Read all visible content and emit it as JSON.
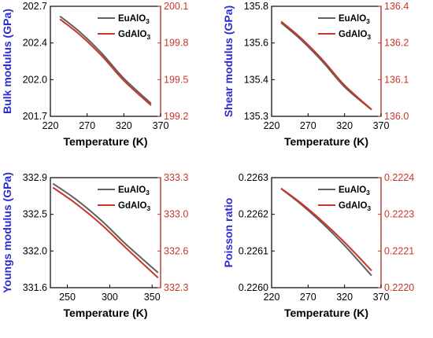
{
  "colors": {
    "left_axis": "#2b2bd3",
    "right_axis": "#c8362a",
    "tick_left": "#000000",
    "frame": "#000000"
  },
  "chart_data": [
    {
      "type": "line",
      "xlabel": "Temperature (K)",
      "ylabel": "Bulk modulus (GPa)",
      "xlim": [
        220,
        370
      ],
      "xticks": [
        "220",
        "270",
        "320",
        "370"
      ],
      "ylim": [
        201.7,
        202.7
      ],
      "yticks": [
        "201.7",
        "202.0",
        "202.4",
        "202.7"
      ],
      "ylim_right": [
        199.2,
        200.1
      ],
      "yticks_right": [
        "199.2",
        "199.5",
        "199.8",
        "200.1"
      ],
      "legend_position": "top-right",
      "series": [
        {
          "name": "EuAlO3",
          "color": "#606060",
          "axis": "left",
          "x": [
            233,
            260,
            290,
            320,
            357
          ],
          "y": [
            202.61,
            202.467,
            202.272,
            202.044,
            201.817
          ]
        },
        {
          "name": "GdAlO3",
          "color": "#c8362a",
          "axis": "right",
          "x": [
            233,
            260,
            290,
            320,
            357
          ],
          "y": [
            199.995,
            199.868,
            199.695,
            199.492,
            199.29
          ]
        }
      ]
    },
    {
      "type": "line",
      "xlabel": "Temperature (K)",
      "ylabel": "Shear modulus (GPa)",
      "xlim": [
        220,
        370
      ],
      "xticks": [
        "220",
        "270",
        "320",
        "370"
      ],
      "ylim": [
        135.3,
        135.8
      ],
      "yticks": [
        "135.3",
        "135.4",
        "135.6",
        "135.8"
      ],
      "ylim_right": [
        136.0,
        136.4
      ],
      "yticks_right": [
        "136.0",
        "136.1",
        "136.2",
        "136.4"
      ],
      "legend_position": "top-right",
      "series": [
        {
          "name": "EuAlO3",
          "color": "#606060",
          "axis": "left",
          "x": [
            233,
            260,
            290,
            320,
            357
          ],
          "y": [
            135.725,
            135.649,
            135.548,
            135.434,
            135.33
          ]
        },
        {
          "name": "GdAlO3",
          "color": "#c8362a",
          "axis": "right",
          "x": [
            233,
            260,
            290,
            320,
            357
          ],
          "y": [
            136.345,
            136.285,
            136.205,
            136.113,
            136.025
          ]
        }
      ]
    },
    {
      "type": "line",
      "xlabel": "Temperature (K)",
      "ylabel": "Youngs modulus (GPa)",
      "xlim": [
        230,
        360
      ],
      "xticks": [
        "250",
        "300",
        "350"
      ],
      "ylim": [
        331.6,
        332.9
      ],
      "yticks": [
        "331.6",
        "332.0",
        "332.5",
        "332.9"
      ],
      "ylim_right": [
        332.3,
        333.3
      ],
      "yticks_right": [
        "332.3",
        "332.6",
        "333.0",
        "333.3"
      ],
      "legend_position": "top-right",
      "series": [
        {
          "name": "EuAlO3",
          "color": "#606060",
          "axis": "left",
          "x": [
            233,
            260,
            290,
            320,
            357
          ],
          "y": [
            332.83,
            332.645,
            332.395,
            332.105,
            331.778
          ]
        },
        {
          "name": "GdAlO3",
          "color": "#c8362a",
          "axis": "right",
          "x": [
            233,
            260,
            290,
            320,
            357
          ],
          "y": [
            333.21,
            333.065,
            332.875,
            332.655,
            332.39
          ]
        }
      ]
    },
    {
      "type": "line",
      "xlabel": "Temperature (K)",
      "ylabel": "Poisson ratio",
      "xlim": [
        220,
        370
      ],
      "xticks": [
        "220",
        "270",
        "320",
        "370"
      ],
      "ylim": [
        0.226,
        0.2263
      ],
      "yticks": [
        "0.2260",
        "0.2261",
        "0.2262",
        "0.2263"
      ],
      "ylim_right": [
        0.222,
        0.2224
      ],
      "yticks_right": [
        "0.2220",
        "0.2221",
        "0.2223",
        "0.2224"
      ],
      "legend_position": "top-right",
      "series": [
        {
          "name": "EuAlO3",
          "color": "#606060",
          "axis": "left",
          "x": [
            233,
            260,
            290,
            320,
            357
          ],
          "y": [
            0.22627,
            0.226228,
            0.226175,
            0.226115,
            0.226033
          ]
        },
        {
          "name": "GdAlO3",
          "color": "#c8362a",
          "axis": "right",
          "x": [
            233,
            260,
            290,
            320,
            357
          ],
          "y": [
            0.222361,
            0.222308,
            0.22224,
            0.222165,
            0.222062
          ]
        }
      ]
    }
  ]
}
